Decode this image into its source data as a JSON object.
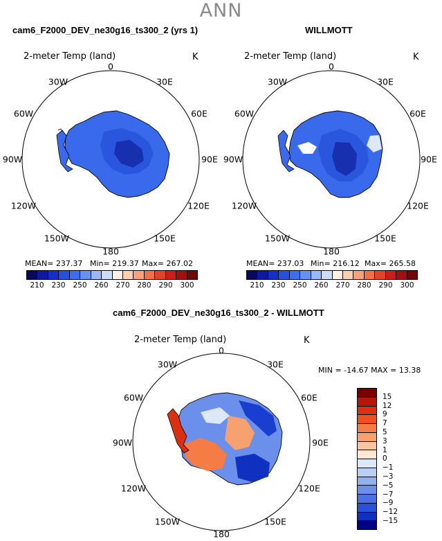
{
  "header": {
    "season": "ANN"
  },
  "panels": {
    "model": {
      "title": "cam6_F2000_DEV_ne30g16_ts300_2 (yrs 1)",
      "variable": "2-meter Temp (land)",
      "units": "K",
      "stats": {
        "mean": "MEAN= 237.37",
        "min": "Min= 219.37",
        "max": "Max= 267.02"
      }
    },
    "obs": {
      "title": "WILLMOTT",
      "variable": "2-meter Temp (land)",
      "units": "K",
      "stats": {
        "mean": "MEAN= 237.03",
        "min": "Min= 216.12",
        "max": "Max= 265.58"
      }
    },
    "diff": {
      "title": "cam6_F2000_DEV_ne30g16_ts300_2 - WILLMOTT",
      "variable": "2-meter Temp (land)",
      "units": "K",
      "minmax": "MIN = -14.67 MAX =  13.38"
    }
  },
  "longitude_labels": [
    "0",
    "30E",
    "60E",
    "90E",
    "120E",
    "150E",
    "180",
    "150W",
    "120W",
    "90W",
    "60W",
    "30W"
  ],
  "abs_colorbar": {
    "ticks": [
      "210",
      "230",
      "250",
      "260",
      "270",
      "280",
      "290",
      "300"
    ],
    "colors": [
      "#08085e",
      "#0c1aa0",
      "#1530c8",
      "#2550e0",
      "#3a70ee",
      "#6494f0",
      "#9ab8f5",
      "#cbdcf8",
      "#fdf1e6",
      "#fcd0b0",
      "#f8a07a",
      "#f07048",
      "#e0442a",
      "#c82018",
      "#a01010",
      "#700808"
    ]
  },
  "diff_colorbar": {
    "ticks": [
      "15",
      "12",
      "9",
      "7",
      "5",
      "3",
      "1",
      "0",
      "−1",
      "−3",
      "−5",
      "−7",
      "−9",
      "−12",
      "−15"
    ],
    "colors": [
      "#7a0000",
      "#b51808",
      "#d83010",
      "#f05020",
      "#f57c45",
      "#f7a070",
      "#fac4a0",
      "#fde6d2",
      "#dce8f8",
      "#b8d0f5",
      "#90b0f2",
      "#6a90ec",
      "#4a70e6",
      "#2850d8",
      "#1030c0",
      "#000088"
    ]
  },
  "colors": {
    "abs_fill_outer": "#3a6aec",
    "abs_fill_mid": "#2a56de",
    "abs_fill_inner": "#1630b0",
    "coastline": "#000000"
  }
}
